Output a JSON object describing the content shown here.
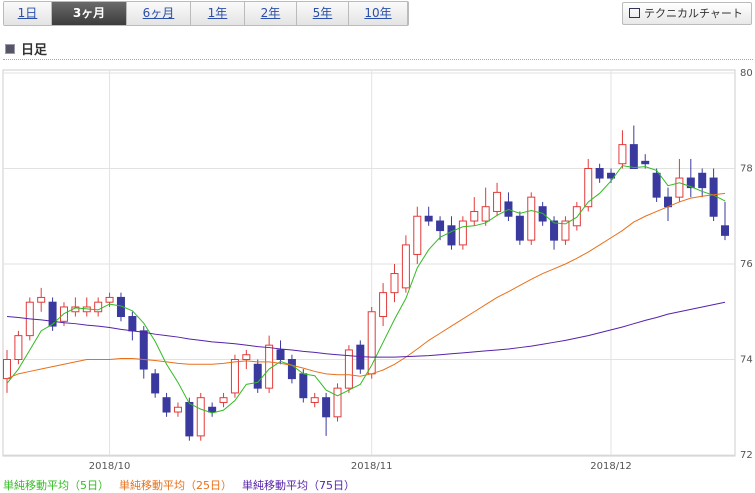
{
  "tabs": [
    "1日",
    "3ヶ月",
    "6ヶ月",
    "1年",
    "2年",
    "5年",
    "10年"
  ],
  "active_tab": 1,
  "button": "テクニカルチャート",
  "section_title": "日足",
  "chart_data": {
    "type": "candlestick",
    "categories": [
      null,
      null,
      null,
      null,
      null,
      null,
      null,
      null,
      null,
      "2018/10",
      null,
      null,
      null,
      null,
      null,
      null,
      null,
      null,
      null,
      null,
      null,
      null,
      null,
      null,
      null,
      null,
      null,
      null,
      null,
      null,
      null,
      null,
      "2018/11",
      null,
      null,
      null,
      null,
      null,
      null,
      null,
      null,
      null,
      null,
      null,
      null,
      null,
      null,
      null,
      null,
      null,
      null,
      null,
      null,
      "2018/12",
      null,
      null,
      null,
      null,
      null,
      null,
      null,
      null,
      null,
      null
    ],
    "open": [
      73.6,
      74.0,
      74.5,
      75.2,
      75.2,
      74.8,
      75.0,
      75.0,
      75.0,
      75.2,
      75.3,
      74.9,
      74.6,
      73.7,
      73.2,
      72.9,
      73.1,
      72.4,
      73.0,
      73.1,
      73.3,
      74.0,
      73.9,
      73.4,
      74.2,
      74.0,
      73.7,
      73.1,
      73.2,
      72.8,
      73.4,
      74.3,
      73.7,
      74.9,
      75.4,
      75.5,
      76.2,
      77.0,
      76.9,
      76.8,
      76.4,
      76.9,
      76.9,
      77.1,
      77.3,
      77.0,
      76.5,
      77.2,
      76.9,
      76.5,
      76.8,
      77.2,
      78.0,
      77.9,
      78.1,
      78.5,
      78.15,
      77.9,
      77.4,
      77.4,
      77.8,
      77.9,
      77.8,
      76.8
    ],
    "high": [
      74.2,
      74.6,
      75.3,
      75.5,
      75.3,
      75.2,
      75.3,
      75.3,
      75.3,
      75.4,
      75.4,
      75.0,
      74.7,
      73.8,
      73.3,
      73.1,
      73.2,
      73.3,
      73.1,
      73.3,
      74.1,
      74.2,
      74.0,
      74.5,
      74.4,
      74.1,
      73.8,
      73.3,
      73.3,
      73.5,
      74.3,
      74.4,
      75.1,
      75.6,
      76.0,
      76.6,
      77.2,
      77.2,
      77.0,
      77.0,
      77.0,
      77.4,
      77.6,
      77.7,
      77.5,
      77.1,
      77.5,
      77.3,
      77.0,
      77.0,
      77.3,
      78.2,
      78.1,
      78.0,
      78.8,
      78.9,
      78.3,
      78.0,
      77.6,
      78.2,
      78.2,
      78.0,
      78.0,
      77.3
    ],
    "low": [
      73.3,
      73.9,
      74.4,
      75.0,
      74.6,
      74.7,
      74.9,
      74.9,
      74.9,
      75.1,
      74.8,
      74.4,
      73.6,
      73.2,
      72.8,
      72.8,
      72.3,
      72.3,
      72.8,
      73.0,
      73.2,
      73.8,
      73.3,
      73.3,
      73.9,
      73.5,
      73.1,
      73.0,
      72.4,
      72.7,
      73.3,
      73.7,
      73.6,
      74.7,
      75.2,
      75.4,
      76.0,
      76.8,
      76.5,
      76.3,
      76.3,
      76.8,
      76.8,
      77.0,
      76.9,
      76.4,
      76.4,
      76.8,
      76.3,
      76.4,
      76.7,
      77.1,
      77.7,
      77.7,
      78.0,
      78.0,
      78.0,
      77.3,
      76.9,
      77.3,
      77.4,
      77.4,
      76.9,
      76.5
    ],
    "close": [
      74.0,
      74.5,
      75.2,
      75.3,
      74.7,
      75.1,
      75.1,
      75.1,
      75.2,
      75.3,
      74.9,
      74.6,
      73.8,
      73.3,
      72.9,
      73.0,
      72.4,
      73.2,
      72.9,
      73.2,
      74.0,
      74.1,
      73.4,
      74.3,
      74.0,
      73.6,
      73.2,
      73.2,
      72.8,
      73.4,
      74.2,
      73.8,
      75.0,
      75.4,
      75.8,
      76.4,
      77.0,
      76.9,
      76.7,
      76.4,
      76.9,
      77.1,
      77.2,
      77.5,
      77.0,
      76.5,
      77.4,
      76.9,
      76.5,
      76.9,
      77.2,
      78.0,
      77.8,
      77.8,
      78.5,
      78.0,
      78.1,
      77.4,
      77.2,
      77.8,
      77.6,
      77.6,
      77.0,
      76.6
    ],
    "up_color": "#e23a3a",
    "down_color": "#3a3a9e",
    "series": [
      {
        "name": "単純移動平均（5日）",
        "color": "#33bb22",
        "values": [
          73.5,
          73.8,
          74.2,
          74.6,
          74.74,
          74.96,
          75.08,
          75.06,
          75.04,
          75.16,
          75.12,
          75.02,
          74.76,
          74.38,
          73.9,
          73.52,
          73.08,
          72.96,
          72.88,
          72.94,
          73.14,
          73.48,
          73.52,
          73.8,
          73.96,
          73.88,
          73.7,
          73.66,
          73.36,
          73.24,
          73.36,
          73.48,
          73.88,
          74.36,
          74.84,
          75.28,
          75.92,
          76.3,
          76.56,
          76.68,
          76.78,
          76.8,
          76.86,
          77.02,
          77.14,
          77.06,
          77.12,
          77.06,
          76.86,
          76.84,
          76.98,
          77.3,
          77.48,
          77.74,
          78.06,
          78.02,
          78.04,
          77.96,
          77.64,
          77.7,
          77.62,
          77.52,
          77.44,
          77.32
        ]
      },
      {
        "name": "単純移動平均（25日）",
        "color": "#e8701a",
        "values": [
          73.6,
          73.7,
          73.75,
          73.8,
          73.85,
          73.9,
          73.95,
          74.0,
          74.0,
          74.0,
          74.02,
          74.02,
          74.0,
          73.98,
          73.95,
          73.92,
          73.9,
          73.9,
          73.9,
          73.92,
          73.95,
          73.97,
          73.95,
          73.95,
          73.92,
          73.88,
          73.82,
          73.75,
          73.7,
          73.68,
          73.68,
          73.65,
          73.7,
          73.78,
          73.9,
          74.05,
          74.22,
          74.4,
          74.55,
          74.7,
          74.85,
          75.0,
          75.15,
          75.3,
          75.42,
          75.55,
          75.68,
          75.8,
          75.9,
          76.0,
          76.12,
          76.25,
          76.4,
          76.55,
          76.7,
          76.88,
          77.0,
          77.1,
          77.2,
          77.3,
          77.38,
          77.42,
          77.45,
          77.48
        ]
      },
      {
        "name": "単純移動平均（75日）",
        "color": "#5522aa",
        "values": [
          74.9,
          74.88,
          74.85,
          74.83,
          74.8,
          74.77,
          74.75,
          74.72,
          74.7,
          74.67,
          74.63,
          74.6,
          74.57,
          74.53,
          74.5,
          74.47,
          74.43,
          74.4,
          74.37,
          74.35,
          74.33,
          74.3,
          74.27,
          74.25,
          74.22,
          74.2,
          74.17,
          74.15,
          74.12,
          74.1,
          74.08,
          74.06,
          74.05,
          74.05,
          74.05,
          74.06,
          74.07,
          74.08,
          74.1,
          74.12,
          74.14,
          74.16,
          74.18,
          74.2,
          74.22,
          74.25,
          74.28,
          74.32,
          74.36,
          74.4,
          74.45,
          74.5,
          74.56,
          74.62,
          74.68,
          74.75,
          74.82,
          74.88,
          74.95,
          75.0,
          75.05,
          75.1,
          75.15,
          75.2
        ]
      }
    ],
    "ylim": [
      72,
      80
    ],
    "yticks": [
      72,
      74,
      76,
      78,
      80
    ],
    "grid": true
  }
}
